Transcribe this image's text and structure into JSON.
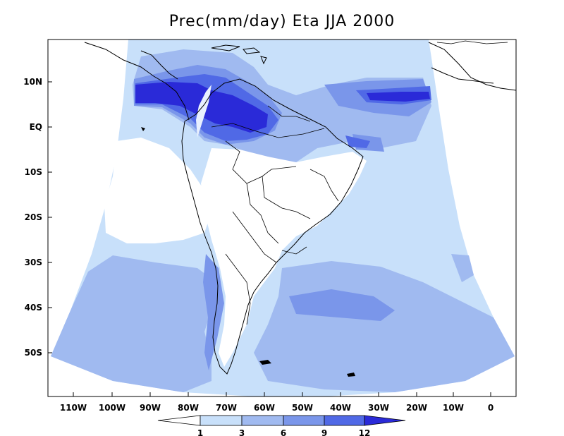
{
  "title": "Prec(mm/day) Eta JJA 2000",
  "axes": {
    "lat_labels": [
      "10N",
      "EQ",
      "10S",
      "20S",
      "30S",
      "40S",
      "50S"
    ],
    "lon_labels": [
      "110W",
      "100W",
      "90W",
      "80W",
      "70W",
      "60W",
      "50W",
      "40W",
      "30W",
      "20W",
      "10W",
      "0"
    ]
  },
  "colorbar": {
    "levels": [
      "1",
      "3",
      "6",
      "9",
      "12"
    ],
    "colors": [
      "#ffffff",
      "#c8e0fa",
      "#a0baf0",
      "#7a96ea",
      "#5069e6",
      "#2a2ad8"
    ]
  },
  "colors": {
    "land_bg": "#ffffff",
    "outline": "#000000"
  }
}
